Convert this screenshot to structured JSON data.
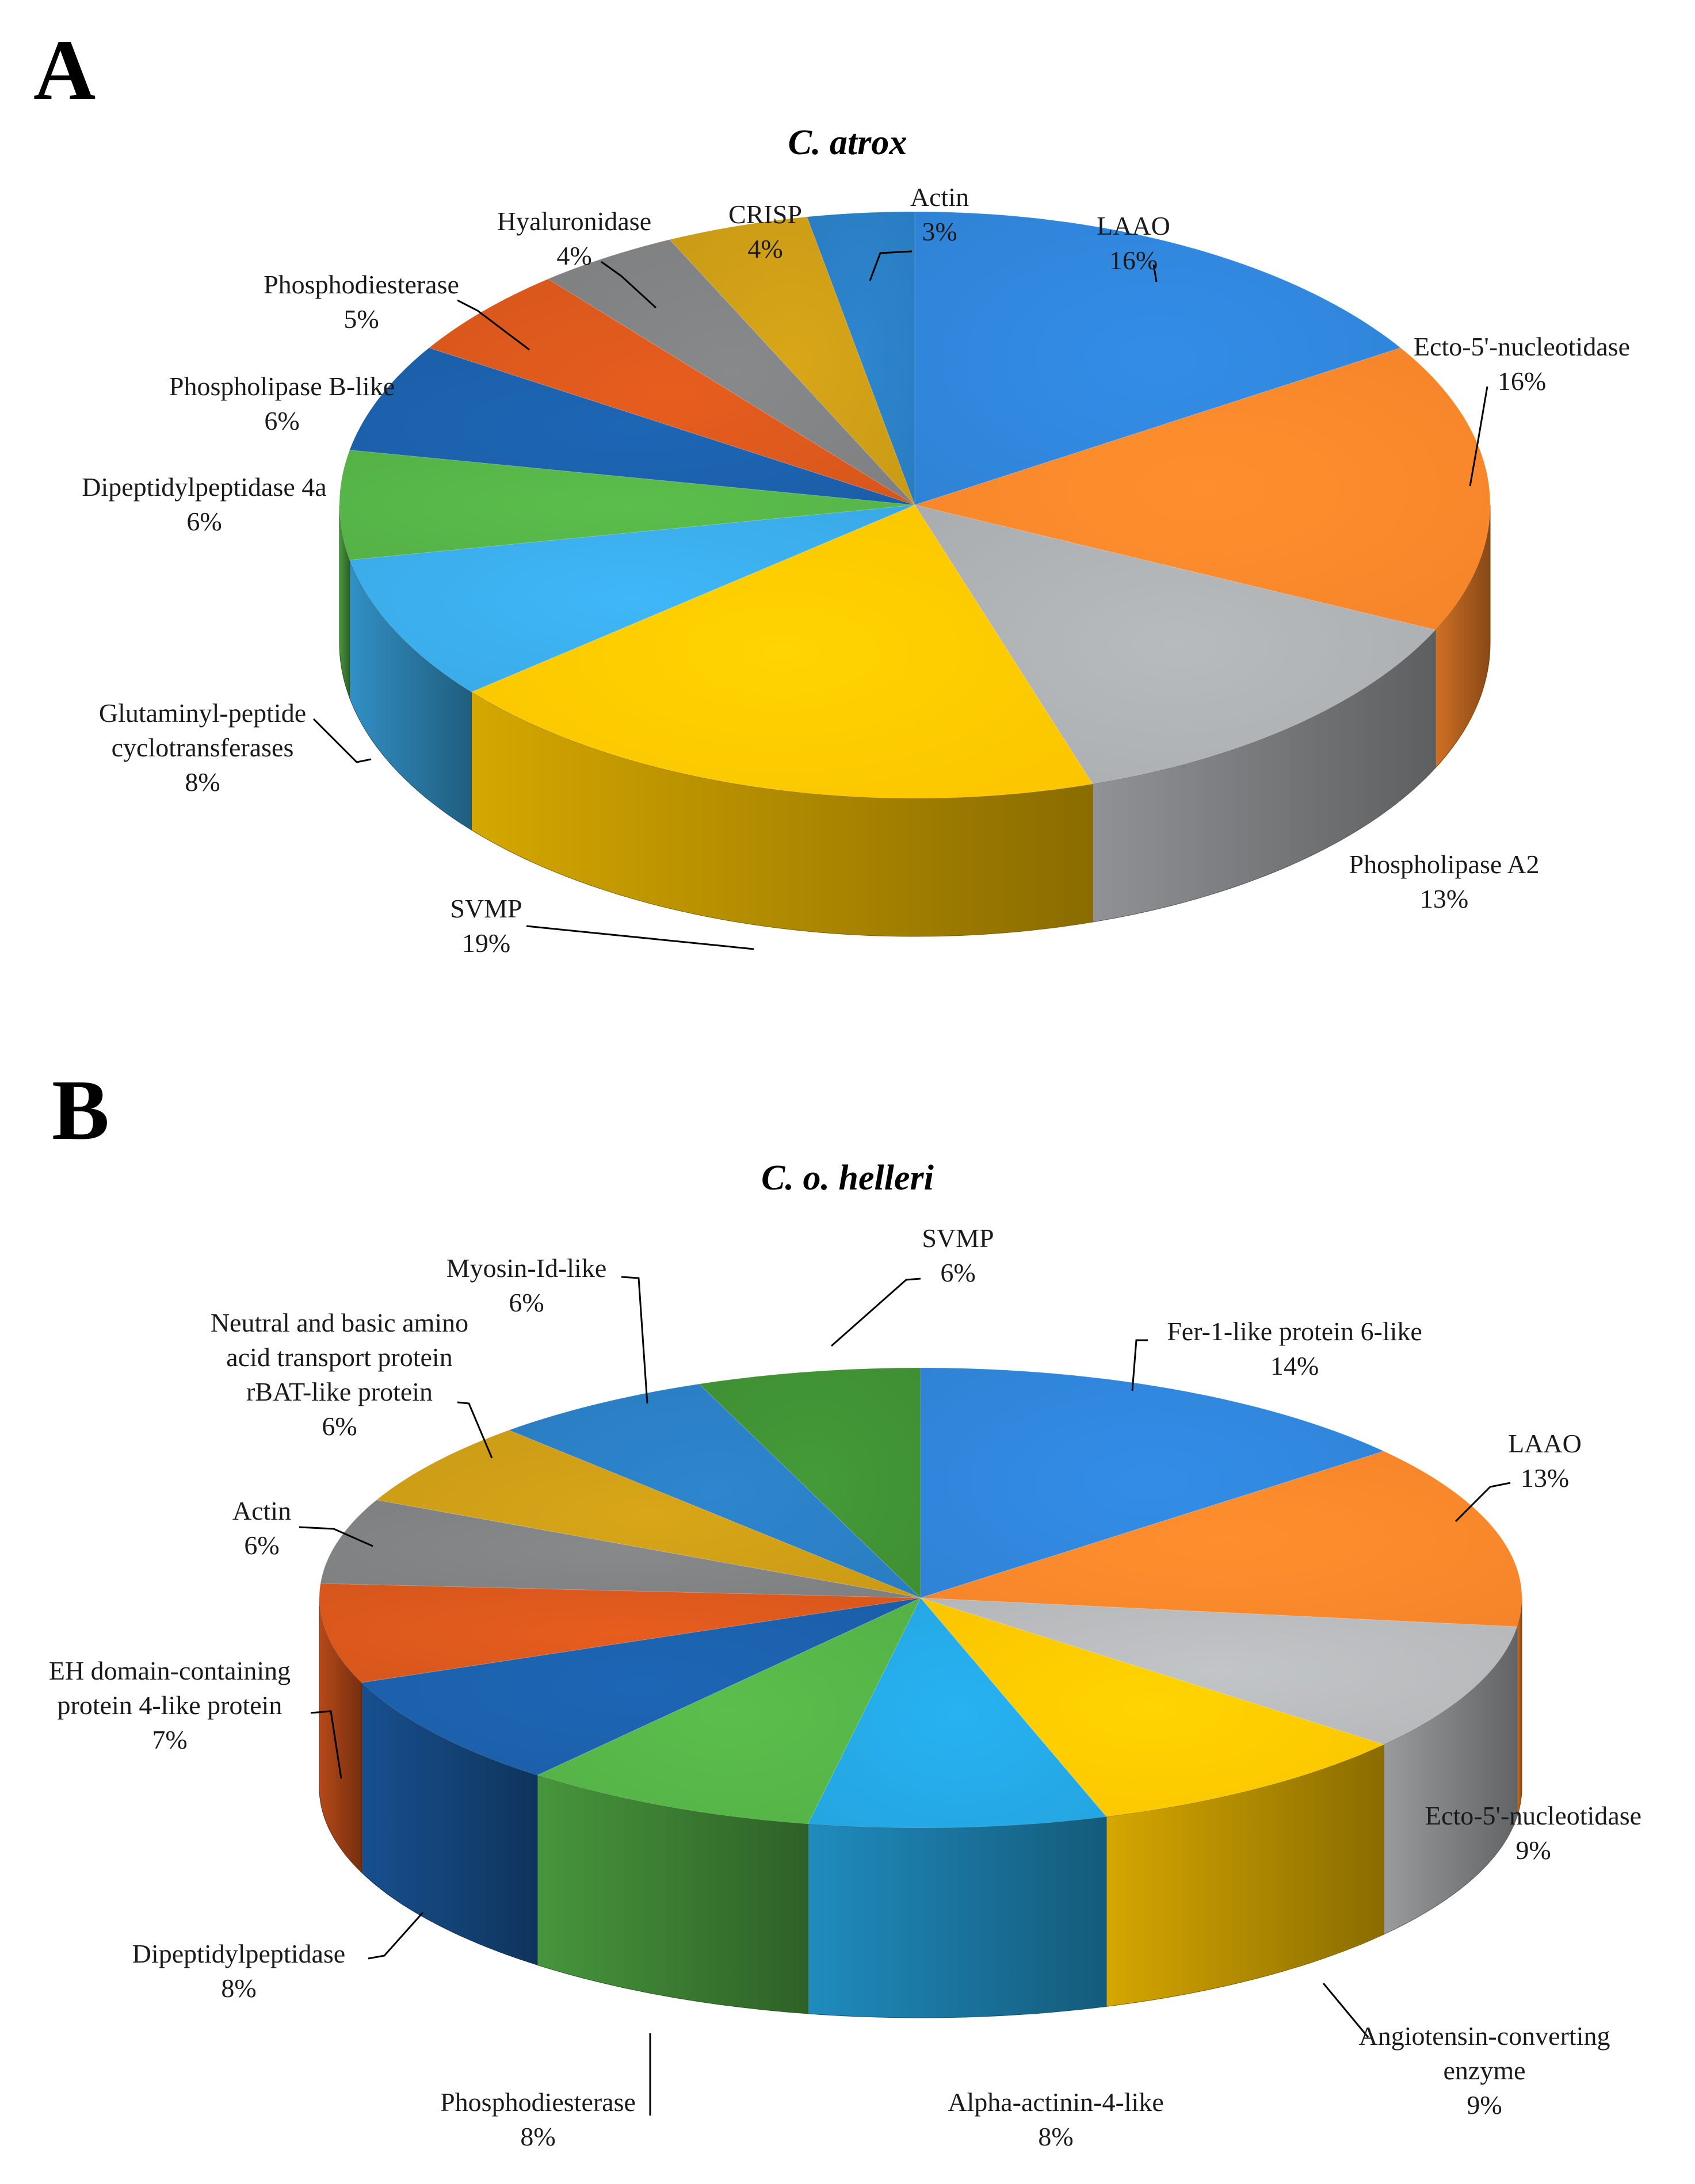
{
  "chart_data": [
    {
      "type": "pie",
      "panel": "A",
      "title": "C. atrox",
      "slices": [
        {
          "label": "LAAO",
          "value": 16,
          "value_label": "16%",
          "color": "#2f83d6"
        },
        {
          "label": "Ecto-5'-nucleotidase",
          "value": 16,
          "value_label": "16%",
          "color": "#f5842a"
        },
        {
          "label": "Phospholipase A2",
          "value": 13,
          "value_label": "13%",
          "color": "#a9adaf"
        },
        {
          "label": "SVMP",
          "value": 19,
          "value_label": "19%",
          "color": "#fbc400"
        },
        {
          "label": [
            "Glutaminyl-peptide",
            "cyclotransferases"
          ],
          "value": 8,
          "value_label": "8%",
          "color": "#3aa9e6"
        },
        {
          "label": "Dipeptidylpeptidase 4a",
          "value": 6,
          "value_label": "6%",
          "color": "#54b146"
        },
        {
          "label": "Phospholipase B-like",
          "value": 6,
          "value_label": "6%",
          "color": "#1b5ea8"
        },
        {
          "label": "Phosphodiesterase",
          "value": 5,
          "value_label": "5%",
          "color": "#d6561c"
        },
        {
          "label": "Hyaluronidase",
          "value": 4,
          "value_label": "4%",
          "color": "#7d7f80"
        },
        {
          "label": "CRISP",
          "value": 4,
          "value_label": "4%",
          "color": "#c99a16"
        },
        {
          "label": "Actin",
          "value": 3,
          "value_label": "3%",
          "color": "#2a7cc0"
        }
      ]
    },
    {
      "type": "pie",
      "panel": "B",
      "title": "C. o. helleri",
      "slices": [
        {
          "label": "Fer-1-like protein 6-like",
          "value": 14,
          "value_label": "14%",
          "color": "#2f83d6"
        },
        {
          "label": "LAAO",
          "value": 13,
          "value_label": "13%",
          "color": "#f5842a"
        },
        {
          "label": "Ecto-5'-nucleotidase",
          "value": 9,
          "value_label": "9%",
          "color": "#b4b6b8"
        },
        {
          "label": [
            "Angiotensin-converting",
            "enzyme"
          ],
          "value": 9,
          "value_label": "9%",
          "color": "#fbc400"
        },
        {
          "label": "Alpha-actinin-4-like",
          "value": 8,
          "value_label": "8%",
          "color": "#24a5e0"
        },
        {
          "label": "Phosphodiesterase",
          "value": 8,
          "value_label": "8%",
          "color": "#54b146"
        },
        {
          "label": "Dipeptidylpeptidase",
          "value": 8,
          "value_label": "8%",
          "color": "#1b5ea8"
        },
        {
          "label": [
            "EH domain-containing",
            "protein 4-like protein"
          ],
          "value": 7,
          "value_label": "7%",
          "color": "#d6561c"
        },
        {
          "label": "Actin",
          "value": 6,
          "value_label": "6%",
          "color": "#7d7f80"
        },
        {
          "label": [
            "Neutral and basic amino",
            "acid transport protein",
            "rBAT-like protein"
          ],
          "value": 6,
          "value_label": "6%",
          "color": "#c99a16"
        },
        {
          "label": "Myosin-Id-like",
          "value": 6,
          "value_label": "6%",
          "color": "#2a7cc0"
        },
        {
          "label": "SVMP",
          "value": 6,
          "value_label": "6%",
          "color": "#3f8f34"
        }
      ]
    }
  ]
}
